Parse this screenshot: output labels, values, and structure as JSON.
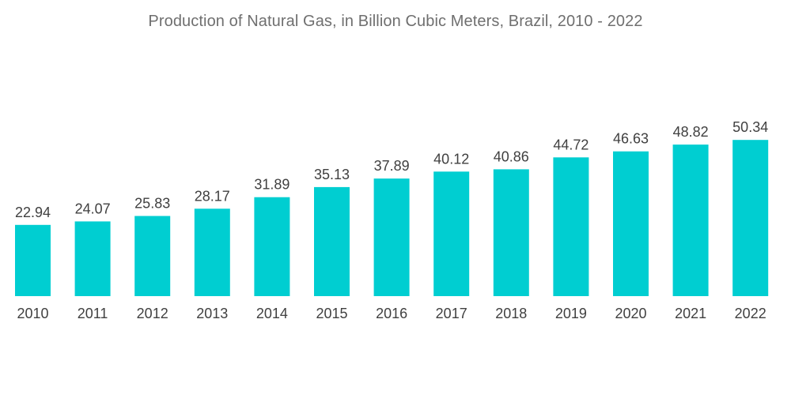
{
  "chart_data": {
    "type": "bar",
    "title": "Production of Natural Gas, in Billion Cubic Meters, Brazil, 2010 - 2022",
    "categories": [
      "2010",
      "2011",
      "2012",
      "2013",
      "2014",
      "2015",
      "2016",
      "2017",
      "2018",
      "2019",
      "2020",
      "2021",
      "2022"
    ],
    "values": [
      22.94,
      24.07,
      25.83,
      28.17,
      31.89,
      35.13,
      37.89,
      40.12,
      40.86,
      44.72,
      46.63,
      48.82,
      50.34
    ],
    "value_labels": [
      "22.94",
      "24.07",
      "25.83",
      "28.17",
      "31.89",
      "35.13",
      "37.89",
      "40.12",
      "40.86",
      "44.72",
      "46.63",
      "48.82",
      "50.34"
    ],
    "xlabel": "",
    "ylabel": "",
    "ylim": [
      0,
      55
    ],
    "grid": false,
    "legend": "none",
    "bar_color": "#00CED1"
  }
}
